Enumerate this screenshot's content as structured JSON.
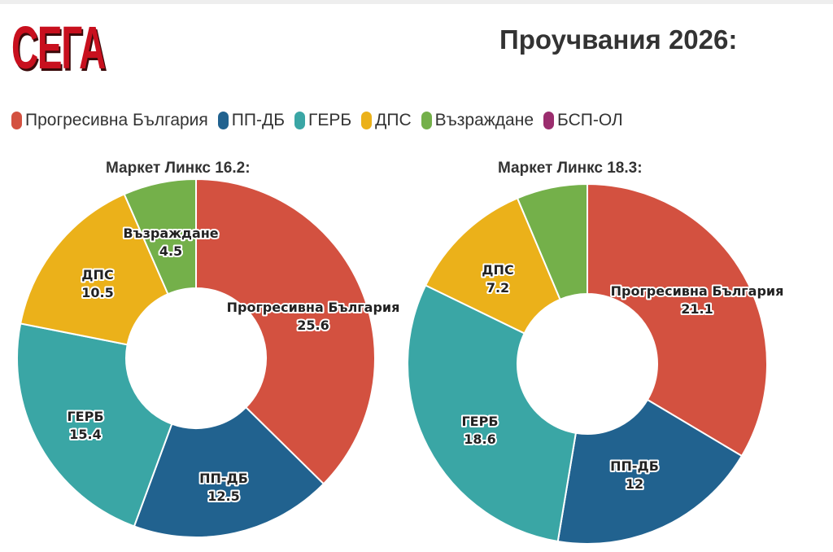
{
  "header": {
    "logo_text": "СЕГА",
    "title": "Проучвания 2026:"
  },
  "legend": [
    {
      "label": "Прогресивна България",
      "color": "#d35140"
    },
    {
      "label": "ПП-ДБ",
      "color": "#21628f"
    },
    {
      "label": "ГЕРБ",
      "color": "#3aa6a5"
    },
    {
      "label": "ДПС",
      "color": "#ebb11a"
    },
    {
      "label": "Възраждане",
      "color": "#74b04a"
    },
    {
      "label": "БСП-ОЛ",
      "color": "#9b2d6e"
    }
  ],
  "chart_data": [
    {
      "type": "pie",
      "title": "Маркет Линкс 16.2:",
      "slices": [
        {
          "name": "Прогресивна България",
          "value": 25.6,
          "value_label": "25.6",
          "color": "#d35140"
        },
        {
          "name": "ПП-ДБ",
          "value": 12.5,
          "value_label": "12.5",
          "color": "#21628f"
        },
        {
          "name": "ГЕРБ",
          "value": 15.4,
          "value_label": "15.4",
          "color": "#3aa6a5"
        },
        {
          "name": "ДПС",
          "value": 10.5,
          "value_label": "10.5",
          "color": "#ebb11a"
        },
        {
          "name": "Възраждане",
          "value": 4.5,
          "value_label": "4.5",
          "color": "#74b04a"
        }
      ]
    },
    {
      "type": "pie",
      "title": "Маркет Линкс 18.3:",
      "slices": [
        {
          "name": "Прогресивна България",
          "value": 21.1,
          "value_label": "21.1",
          "color": "#d35140"
        },
        {
          "name": "ПП-ДБ",
          "value": 12,
          "value_label": "12",
          "color": "#21628f"
        },
        {
          "name": "ГЕРБ",
          "value": 18.6,
          "value_label": "18.6",
          "color": "#3aa6a5"
        },
        {
          "name": "ДПС",
          "value": 7.2,
          "value_label": "7.2",
          "color": "#ebb11a"
        },
        {
          "name": "Възраждане",
          "value": 4.0,
          "value_label": null,
          "color": "#74b04a"
        }
      ]
    }
  ]
}
